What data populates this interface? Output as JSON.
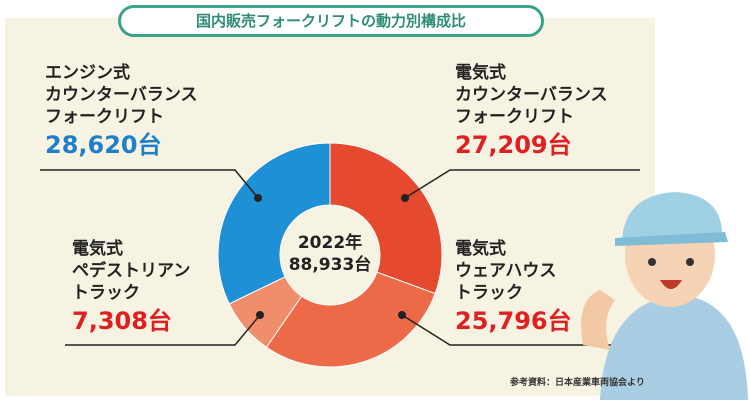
{
  "chart_data": {
    "type": "donut",
    "title": "国内販売フォークリフトの動力別構成比",
    "center_year": "2022年",
    "center_total": "88,933台",
    "source": "参考資料：日本産業車両協会より",
    "categories": [
      "電気式\nカウンターバランス\nフォークリフト",
      "電気式\nウェアハウス\nトラック",
      "電気式\nペデストリアン\nトラック",
      "エンジン式\nカウンターバランス\nフォークリフト"
    ],
    "values": [
      27209,
      25796,
      7308,
      28620
    ],
    "value_labels": [
      "27,209台",
      "25,796台",
      "7,308台",
      "28,620台"
    ],
    "colors": [
      "#e5492e",
      "#ec6a47",
      "#f08e6c",
      "#1e90d6"
    ],
    "label_colors": [
      "#e02020",
      "#e02020",
      "#e02020",
      "#1f7fc8"
    ]
  }
}
